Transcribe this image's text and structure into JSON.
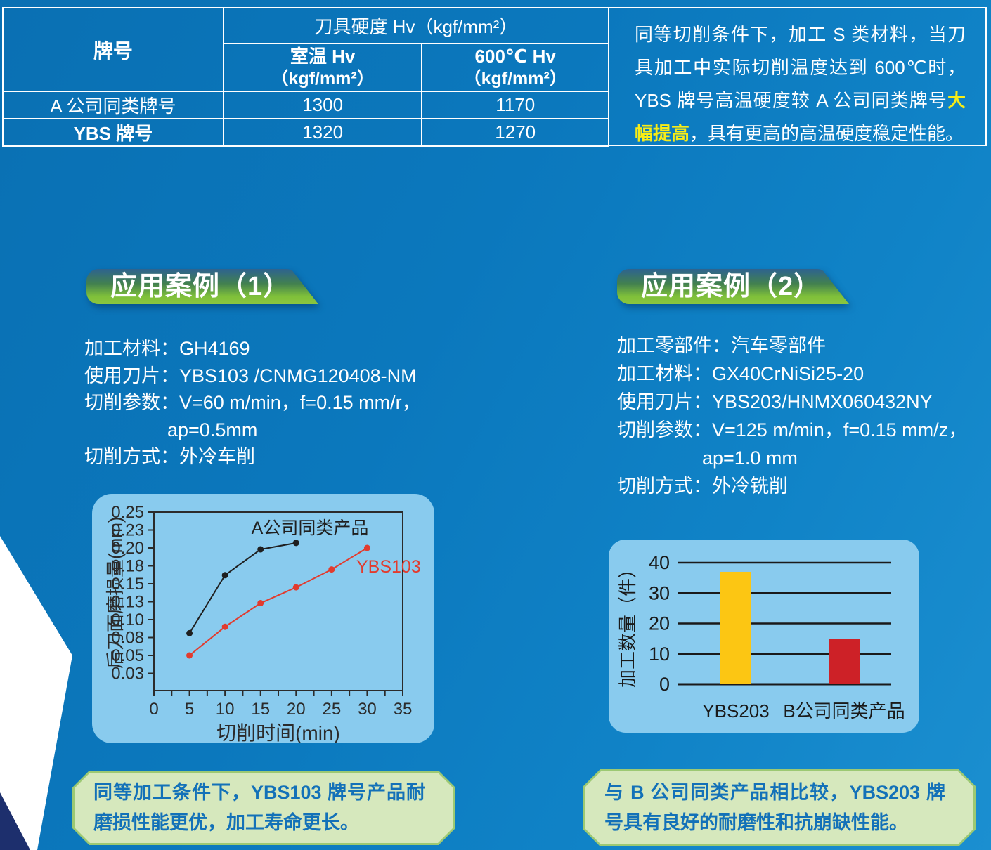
{
  "colors": {
    "page_bg_top": "#0a70b3",
    "page_bg_bottom": "#1b8fd0",
    "panel_bg": "#89cbee",
    "highlight_yellow": "#f8ec16",
    "note_box_fill": "#d6e8bd",
    "note_box_border": "#9cc973",
    "note_text_blue": "#1371b8",
    "badge_green": "#8bc63f",
    "navy_triangle": "#1d2f6d"
  },
  "header_table": {
    "brand_header": "牌号",
    "hardness_header": "刀具硬度 Hv（kgf/mm²）",
    "room_temp_header": "室温 Hv",
    "room_temp_unit": "（kgf/mm²）",
    "high_temp_header": "600℃ Hv",
    "high_temp_unit": "（kgf/mm²）",
    "rows": [
      {
        "brand": "A 公司同类牌号",
        "room_hv": "1300",
        "high_hv": "1170"
      },
      {
        "brand": "YBS 牌号",
        "room_hv": "1320",
        "high_hv": "1270"
      }
    ]
  },
  "header_note": {
    "pre": "同等切削条件下，加工 S 类材料，当刀具加工中实际切削温度达到 600℃时，YBS 牌号高温硬度较 A 公司同类牌号",
    "highlight": "大幅提高",
    "post": "，具有更高的高温硬度稳定性能。"
  },
  "case1": {
    "title": "应用案例（1）",
    "params": [
      {
        "label": "加工材料：",
        "value": "GH4169"
      },
      {
        "label": "使用刀片：",
        "value": "YBS103 /CNMG120408-NM"
      },
      {
        "label": "切削参数：",
        "value": "V=60 m/min，f=0.15 mm/r，"
      },
      {
        "label": "",
        "value": "ap=0.5mm"
      },
      {
        "label": "切削方式：",
        "value": "外冷车削"
      }
    ],
    "note": "同等加工条件下，YBS103 牌号产品耐磨损性能更优，加工寿命更长。"
  },
  "case2": {
    "title": "应用案例（2）",
    "params": [
      {
        "label": "加工零部件：",
        "value": "汽车零部件"
      },
      {
        "label": "加工材料：",
        "value": "GX40CrNiSi25-20"
      },
      {
        "label": "使用刀片：",
        "value": "YBS203/HNMX060432NY"
      },
      {
        "label": "切削参数：",
        "value": "V=125 m/min，f=0.15 mm/z，"
      },
      {
        "label": "",
        "value": "ap=1.0 mm"
      },
      {
        "label": "切削方式：",
        "value": "外冷铣削"
      }
    ],
    "note": "与 B 公司同类产品相比较，YBS203 牌号具有良好的耐磨性和抗崩缺性能。"
  },
  "chart_data": [
    {
      "type": "line",
      "title": "",
      "xlabel": "切削时间(min)",
      "ylabel": "后刀面磨损量(mm)",
      "xlim": [
        0,
        35
      ],
      "x_tick_labels": [
        "0",
        "5",
        "10",
        "15",
        "20",
        "25",
        "30",
        "35"
      ],
      "x_tick_values": [
        0,
        5,
        10,
        15,
        20,
        25,
        30,
        35
      ],
      "x_minor_step": 2.5,
      "y_tick_labels": [
        "0.25",
        "0.23",
        "0.20",
        "0.18",
        "0.15",
        "0.13",
        "0.10",
        "0.08",
        "0.05",
        "0.03"
      ],
      "y_tick_values": [
        0.25,
        0.225,
        0.2,
        0.175,
        0.15,
        0.125,
        0.1,
        0.075,
        0.05,
        0.025
      ],
      "grid": false,
      "legend_position": "inline-annotations",
      "series": [
        {
          "name": "A公司同类产品",
          "color": "#1f1f1f",
          "x": [
            5,
            10,
            15,
            20
          ],
          "y": [
            0.081,
            0.162,
            0.198,
            0.207
          ]
        },
        {
          "name": "YBS103",
          "color": "#e23b2e",
          "x": [
            5,
            10,
            15,
            20,
            25,
            30
          ],
          "y": [
            0.05,
            0.09,
            0.123,
            0.145,
            0.17,
            0.2
          ]
        }
      ]
    },
    {
      "type": "bar",
      "title": "",
      "xlabel": "",
      "ylabel": "加工数量（件）",
      "categories": [
        "YBS203",
        "B公司同类产品"
      ],
      "values": [
        37,
        15
      ],
      "bar_colors": [
        "#fcc613",
        "#cd2127"
      ],
      "y_ticks": [
        0,
        10,
        20,
        30,
        40
      ],
      "ylim": [
        0,
        40
      ],
      "grid": true
    }
  ]
}
